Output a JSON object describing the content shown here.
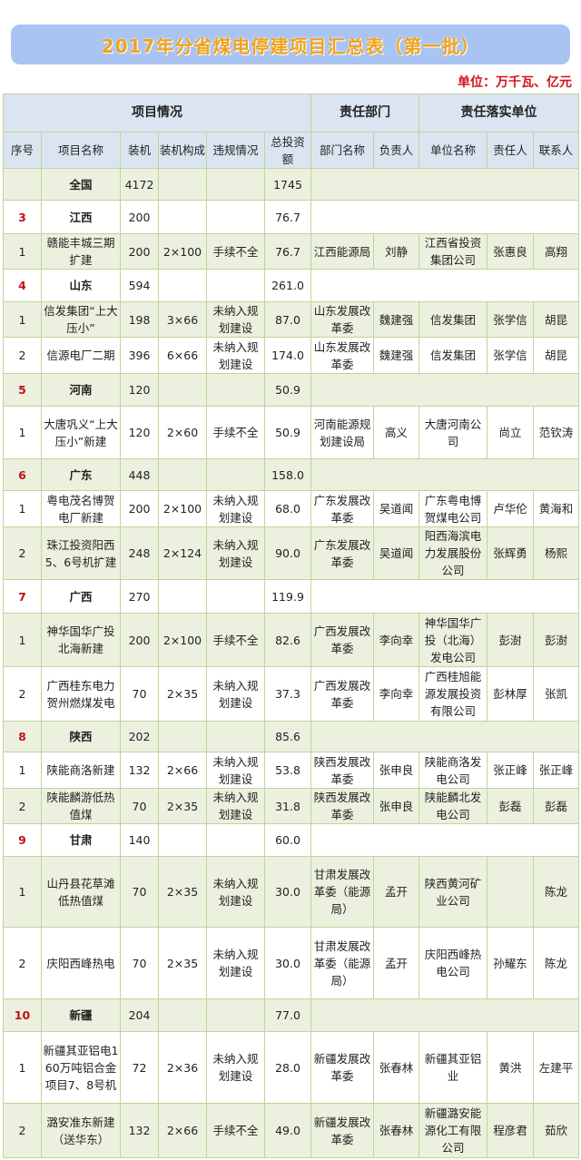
{
  "title": "2017年分省煤电停建项目汇总表（第一批）",
  "unit": "单位：万千瓦、亿元",
  "group_headers": [
    "项目情况",
    "责任部门",
    "责任落实单位"
  ],
  "columns": [
    "序号",
    "项目名称",
    "装机",
    "装机构成",
    "违规情况",
    "总投资额",
    "部门名称",
    "负责人",
    "单位名称",
    "责任人",
    "联系人"
  ],
  "colors": {
    "seq_red": "#c0101a",
    "title_orange": "#f0a21c",
    "banner_blue": "#a9c4f2",
    "unit_red": "#d8121a",
    "row_green": "#ebf1de",
    "header_blue": "#dbe5f1"
  },
  "rows": [
    {
      "type": "total",
      "seq": "",
      "name": "全国",
      "capacity": "4172",
      "config": "",
      "violation": "",
      "investment": "1745"
    },
    {
      "type": "province",
      "seq": "3",
      "name": "江西",
      "capacity": "200",
      "config": "",
      "violation": "",
      "investment": "76.7"
    },
    {
      "type": "project",
      "seq": "1",
      "name": "赣能丰城三期扩建",
      "capacity": "200",
      "config": "2×100",
      "violation": "手续不全",
      "investment": "76.7",
      "dept": "江西能源局",
      "dept_head": "刘静",
      "unit_name": "江西省投资集团公司",
      "responsible": "张惠良",
      "contact": "高翔"
    },
    {
      "type": "province",
      "seq": "4",
      "name": "山东",
      "capacity": "594",
      "config": "",
      "violation": "",
      "investment": "261.0"
    },
    {
      "type": "project",
      "seq": "1",
      "name": "信发集团“上大压小”",
      "capacity": "198",
      "config": "3×66",
      "violation": "未纳入规划建设",
      "investment": "87.0",
      "dept": "山东发展改革委",
      "dept_head": "魏建强",
      "unit_name": "信发集团",
      "responsible": "张学信",
      "contact": "胡昆"
    },
    {
      "type": "project",
      "seq": "2",
      "name": "信源电厂二期",
      "capacity": "396",
      "config": "6×66",
      "violation": "未纳入规划建设",
      "investment": "174.0",
      "dept": "山东发展改革委",
      "dept_head": "魏建强",
      "unit_name": "信发集团",
      "responsible": "张学信",
      "contact": "胡昆"
    },
    {
      "type": "province",
      "seq": "5",
      "name": "河南",
      "capacity": "120",
      "config": "",
      "violation": "",
      "investment": "50.9"
    },
    {
      "type": "project",
      "seq": "1",
      "name": "大唐巩义“上大压小”新建",
      "capacity": "120",
      "config": "2×60",
      "violation": "手续不全",
      "investment": "50.9",
      "dept": "河南能源规划建设局",
      "dept_head": "高义",
      "unit_name": "大唐河南公司",
      "responsible": "尚立",
      "contact": "范钦涛"
    },
    {
      "type": "province",
      "seq": "6",
      "name": "广东",
      "capacity": "448",
      "config": "",
      "violation": "",
      "investment": "158.0"
    },
    {
      "type": "project",
      "seq": "1",
      "name": "粤电茂名博贺电厂新建",
      "capacity": "200",
      "config": "2×100",
      "violation": "未纳入规划建设",
      "investment": "68.0",
      "dept": "广东发展改革委",
      "dept_head": "吴道闻",
      "unit_name": "广东粤电博贺煤电公司",
      "responsible": "卢华伦",
      "contact": "黄海和"
    },
    {
      "type": "project",
      "seq": "2",
      "name": "珠江投资阳西5、6号机扩建",
      "capacity": "248",
      "config": "2×124",
      "violation": "未纳入规划建设",
      "investment": "90.0",
      "dept": "广东发展改革委",
      "dept_head": "吴道闻",
      "unit_name": "阳西海滨电力发展股份公司",
      "responsible": "张辉勇",
      "contact": "杨熙"
    },
    {
      "type": "province",
      "seq": "7",
      "name": "广西",
      "capacity": "270",
      "config": "",
      "violation": "",
      "investment": "119.9"
    },
    {
      "type": "project",
      "seq": "1",
      "name": "神华国华广投北海新建",
      "capacity": "200",
      "config": "2×100",
      "violation": "手续不全",
      "investment": "82.6",
      "dept": "广西发展改革委",
      "dept_head": "李向幸",
      "unit_name": "神华国华广投（北海）发电公司",
      "responsible": "彭澍",
      "contact": "彭澍"
    },
    {
      "type": "project",
      "seq": "2",
      "name": "广西桂东电力贺州燃煤发电",
      "capacity": "70",
      "config": "2×35",
      "violation": "未纳入规划建设",
      "investment": "37.3",
      "dept": "广西发展改革委",
      "dept_head": "李向幸",
      "unit_name": "广西桂旭能源发展投资有限公司",
      "responsible": "彭林厚",
      "contact": "张凯"
    },
    {
      "type": "province",
      "seq": "8",
      "name": "陕西",
      "capacity": "202",
      "config": "",
      "violation": "",
      "investment": "85.6"
    },
    {
      "type": "project",
      "seq": "1",
      "name": "陕能商洛新建",
      "capacity": "132",
      "config": "2×66",
      "violation": "未纳入规划建设",
      "investment": "53.8",
      "dept": "陕西发展改革委",
      "dept_head": "张申良",
      "unit_name": "陕能商洛发电公司",
      "responsible": "张正峰",
      "contact": "张正峰"
    },
    {
      "type": "project",
      "seq": "2",
      "name": "陕能麟游低热值煤",
      "capacity": "70",
      "config": "2×35",
      "violation": "未纳入规划建设",
      "investment": "31.8",
      "dept": "陕西发展改革委",
      "dept_head": "张申良",
      "unit_name": "陕能麟北发电公司",
      "responsible": "彭磊",
      "contact": "彭磊"
    },
    {
      "type": "province",
      "seq": "9",
      "name": "甘肃",
      "capacity": "140",
      "config": "",
      "violation": "",
      "investment": "60.0"
    },
    {
      "type": "project",
      "seq": "1",
      "name": "山丹县花草滩低热值煤",
      "capacity": "70",
      "config": "2×35",
      "violation": "未纳入规划建设",
      "investment": "30.0",
      "dept": "甘肃发展改革委（能源局）",
      "dept_head": "孟开",
      "unit_name": "陕西黄河矿业公司",
      "responsible": "",
      "contact": "陈龙"
    },
    {
      "type": "project",
      "seq": "2",
      "name": "庆阳西峰热电",
      "capacity": "70",
      "config": "2×35",
      "violation": "未纳入规划建设",
      "investment": "30.0",
      "dept": "甘肃发展改革委（能源局）",
      "dept_head": "孟开",
      "unit_name": "庆阳西峰热电公司",
      "responsible": "孙耀东",
      "contact": "陈龙"
    },
    {
      "type": "province",
      "seq": "10",
      "name": "新疆",
      "capacity": "204",
      "config": "",
      "violation": "",
      "investment": "77.0"
    },
    {
      "type": "project",
      "seq": "1",
      "name": "新疆其亚铝电160万吨铝合金项目7、8号机",
      "capacity": "72",
      "config": "2×36",
      "violation": "未纳入规划建设",
      "investment": "28.0",
      "dept": "新疆发展改革委",
      "dept_head": "张春林",
      "unit_name": "新疆其亚铝业",
      "responsible": "黄洪",
      "contact": "左建平"
    },
    {
      "type": "project",
      "seq": "2",
      "name": "潞安准东新建（送华东）",
      "capacity": "132",
      "config": "2×66",
      "violation": "手续不全",
      "investment": "49.0",
      "dept": "新疆发展改革委",
      "dept_head": "张春林",
      "unit_name": "新疆潞安能源化工有限公司",
      "responsible": "程彦君",
      "contact": "茹欣"
    }
  ]
}
